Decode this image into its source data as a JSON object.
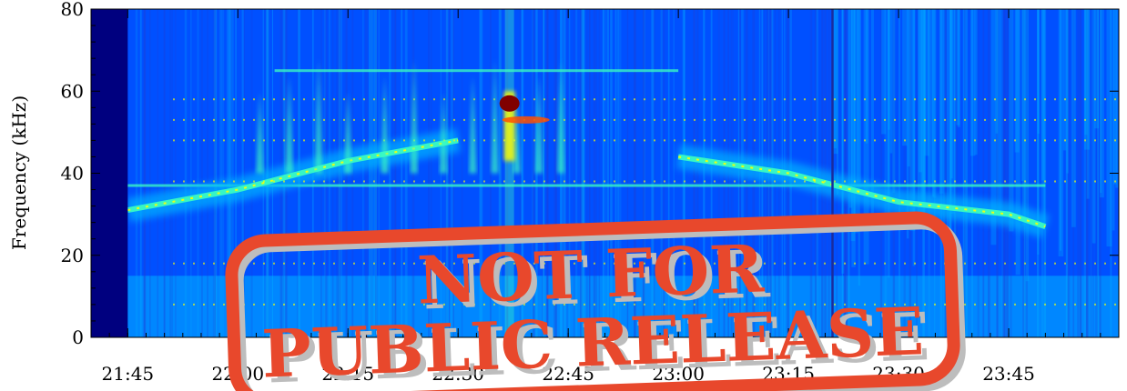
{
  "chart_data": {
    "type": "heatmap",
    "subtype": "spectrogram",
    "title": "",
    "xlabel": "",
    "ylabel": "Frequency (kHz)",
    "ylim": [
      0,
      80
    ],
    "yticks": [
      0,
      20,
      40,
      60,
      80
    ],
    "xlim_minutes": [
      1300,
      1440
    ],
    "xticks": [
      {
        "label": "21:45",
        "minutes": 1305
      },
      {
        "label": "22:00",
        "minutes": 1320
      },
      {
        "label": "22:15",
        "minutes": 1335
      },
      {
        "label": "22:30",
        "minutes": 1350
      },
      {
        "label": "22:45",
        "minutes": 1365
      },
      {
        "label": "23:00",
        "minutes": 1380
      },
      {
        "label": "23:15",
        "minutes": 1395
      },
      {
        "label": "23:30",
        "minutes": 1410
      },
      {
        "label": "23:45",
        "minutes": 1425
      }
    ],
    "colormap": [
      "#00007f",
      "#0050ff",
      "#00b4ff",
      "#3cffc0",
      "#ffff00",
      "#ff5000",
      "#800000"
    ],
    "data_gaps": [
      {
        "start": "21:40",
        "end": "21:45"
      }
    ],
    "features": [
      {
        "name": "rising emission band",
        "points": [
          {
            "time": "21:45",
            "freq": 31
          },
          {
            "time": "22:00",
            "freq": 36
          },
          {
            "time": "22:15",
            "freq": 43
          },
          {
            "time": "22:30",
            "freq": 48
          }
        ]
      },
      {
        "name": "descending emission band",
        "points": [
          {
            "time": "23:00",
            "freq": 44
          },
          {
            "time": "23:15",
            "freq": 40
          },
          {
            "time": "23:30",
            "freq": 33
          },
          {
            "time": "23:45",
            "freq": 30
          },
          {
            "time": "23:50",
            "freq": 27
          }
        ]
      },
      {
        "name": "intense burst",
        "time": "22:37",
        "freq_range": [
          43,
          60
        ],
        "peak_freq": 57
      },
      {
        "name": "line emission",
        "freq": 65,
        "time_range": [
          "22:05",
          "23:00"
        ]
      },
      {
        "name": "line emission",
        "freq": 37,
        "time_range": [
          "21:30",
          "23:50"
        ]
      },
      {
        "name": "vertical line",
        "time": "23:21"
      }
    ]
  },
  "watermark": {
    "line1": "NOT FOR",
    "line2": "PUBLIC RELEASE",
    "color": "#e8482c"
  }
}
